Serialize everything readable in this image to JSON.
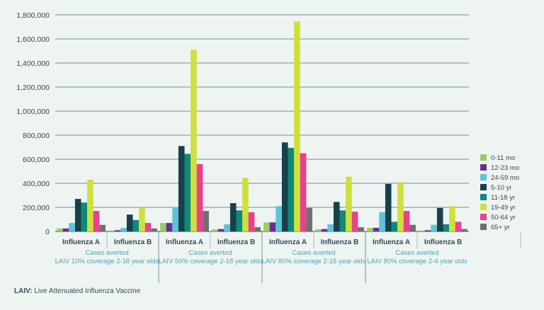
{
  "chart_data": {
    "type": "bar",
    "ylim": [
      0,
      1800000
    ],
    "yticks": [
      "0",
      "200,000",
      "400,000",
      "600,000",
      "800,000",
      "1,000,000",
      "1,200,000",
      "1,400,000",
      "1,600,000",
      "1,800,000"
    ],
    "categories": [
      "Influenza A",
      "Influenza B",
      "Influenza A",
      "Influenza B",
      "Influenza A",
      "Influenza B",
      "Influenza A",
      "Influenza B"
    ],
    "groups": [
      {
        "line1": "Cases averted",
        "line2": "LAIV 10% coverage 2-18 year olds"
      },
      {
        "line1": "Cases averted",
        "line2": "LAIV 50% coverage 2-18 year olds"
      },
      {
        "line1": "Cases averted",
        "line2": "LAIV 80% coverage 2-18 year olds"
      },
      {
        "line1": "Cases averted",
        "line2": "LAIV 80% coverage 2-4 year olds"
      }
    ],
    "series": [
      {
        "name": "0-11 mo",
        "color": "#9ccc65",
        "values": [
          25000,
          8000,
          70000,
          18000,
          75000,
          18000,
          30000,
          8000
        ]
      },
      {
        "name": "12-23 mo",
        "color": "#6a2c91",
        "values": [
          25000,
          10000,
          70000,
          20000,
          75000,
          20000,
          30000,
          10000
        ]
      },
      {
        "name": "24-59 mo",
        "color": "#5bc5d8",
        "values": [
          70000,
          30000,
          195000,
          60000,
          210000,
          60000,
          160000,
          55000
        ]
      },
      {
        "name": "5-10 yr",
        "color": "#17404a",
        "values": [
          270000,
          140000,
          710000,
          235000,
          740000,
          245000,
          395000,
          195000
        ]
      },
      {
        "name": "11-18 yr",
        "color": "#0e8a7a",
        "values": [
          240000,
          95000,
          645000,
          175000,
          695000,
          175000,
          80000,
          60000
        ]
      },
      {
        "name": "19-49 yr",
        "color": "#cfe03a",
        "values": [
          430000,
          195000,
          1510000,
          445000,
          1745000,
          455000,
          410000,
          210000
        ]
      },
      {
        "name": "50-64 yr",
        "color": "#ec3f8e",
        "values": [
          170000,
          70000,
          560000,
          160000,
          650000,
          165000,
          170000,
          80000
        ]
      },
      {
        "name": "65+ yr",
        "color": "#6f6f6f",
        "values": [
          55000,
          25000,
          170000,
          35000,
          195000,
          35000,
          55000,
          20000
        ]
      }
    ]
  },
  "footnote": {
    "term": "LAIV:",
    "text": " Live Attenuated Influenza Vaccine"
  }
}
